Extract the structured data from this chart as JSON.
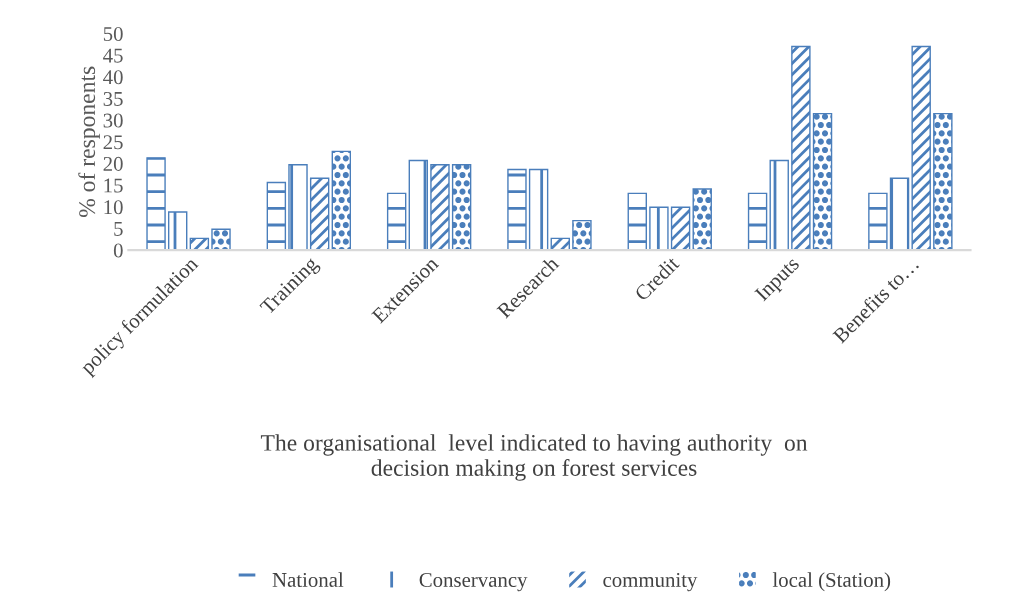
{
  "chart_data": {
    "type": "bar",
    "categories": [
      "policy formulation",
      "Training",
      "Extension",
      "Research",
      "Credit",
      "Inputs",
      "Benefits to…"
    ],
    "series": [
      {
        "name": "National",
        "color": "#4a7ebb",
        "values": [
          21.3,
          15.6,
          13.1,
          18.6,
          13.1,
          13.1,
          13.1
        ]
      },
      {
        "name": "Conservancy",
        "color": "#4a7ebb",
        "values": [
          8.8,
          19.7,
          20.7,
          18.6,
          9.9,
          20.7,
          16.6
        ]
      },
      {
        "name": "community",
        "color": "#4a7ebb",
        "values": [
          2.7,
          16.6,
          19.7,
          2.7,
          9.9,
          47,
          47
        ]
      },
      {
        "name": "local (Station)",
        "color": "#4a7ebb",
        "values": [
          4.8,
          22.8,
          19.7,
          6.8,
          14.1,
          31.5,
          31.5
        ]
      }
    ],
    "xlabel": "The organisational  level indicated to having authority  on\ndecision making on forest services",
    "ylabel": "% of responents",
    "ylim": [
      0,
      50
    ],
    "yticks": [
      0,
      5,
      10,
      15,
      20,
      25,
      30,
      35,
      40,
      45,
      50
    ],
    "grid": false,
    "legend": "bottom"
  }
}
